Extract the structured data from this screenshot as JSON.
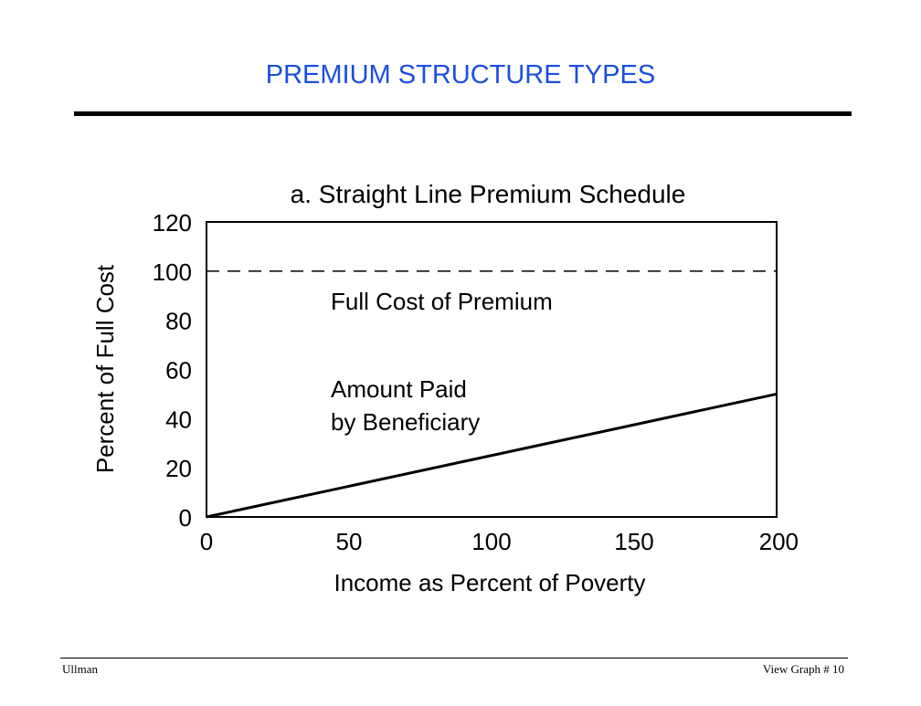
{
  "slide": {
    "title": "PREMIUM STRUCTURE TYPES",
    "title_color": "#1a4fe0"
  },
  "footer": {
    "left": "Ullman",
    "right": "View Graph  # 10"
  },
  "chart_data": {
    "type": "line",
    "title": "a.  Straight Line Premium Schedule",
    "xlabel": "Income as Percent of Poverty",
    "ylabel": "Percent of Full Cost",
    "xlim": [
      0,
      200
    ],
    "ylim": [
      0,
      120
    ],
    "x_ticks": [
      0,
      50,
      100,
      150,
      200
    ],
    "y_ticks": [
      0,
      20,
      40,
      60,
      80,
      100,
      120
    ],
    "grid": false,
    "series": [
      {
        "name": "Full Cost of Premium",
        "style": "dashed",
        "x": [
          0,
          200
        ],
        "y": [
          100,
          100
        ]
      },
      {
        "name": "Amount Paid by Beneficiary",
        "style": "solid",
        "x": [
          0,
          200
        ],
        "y": [
          0,
          50
        ]
      }
    ],
    "annotations": [
      {
        "lines": [
          "Full Cost of Premium"
        ]
      },
      {
        "lines": [
          "Amount Paid",
          "by Beneficiary"
        ]
      }
    ]
  }
}
